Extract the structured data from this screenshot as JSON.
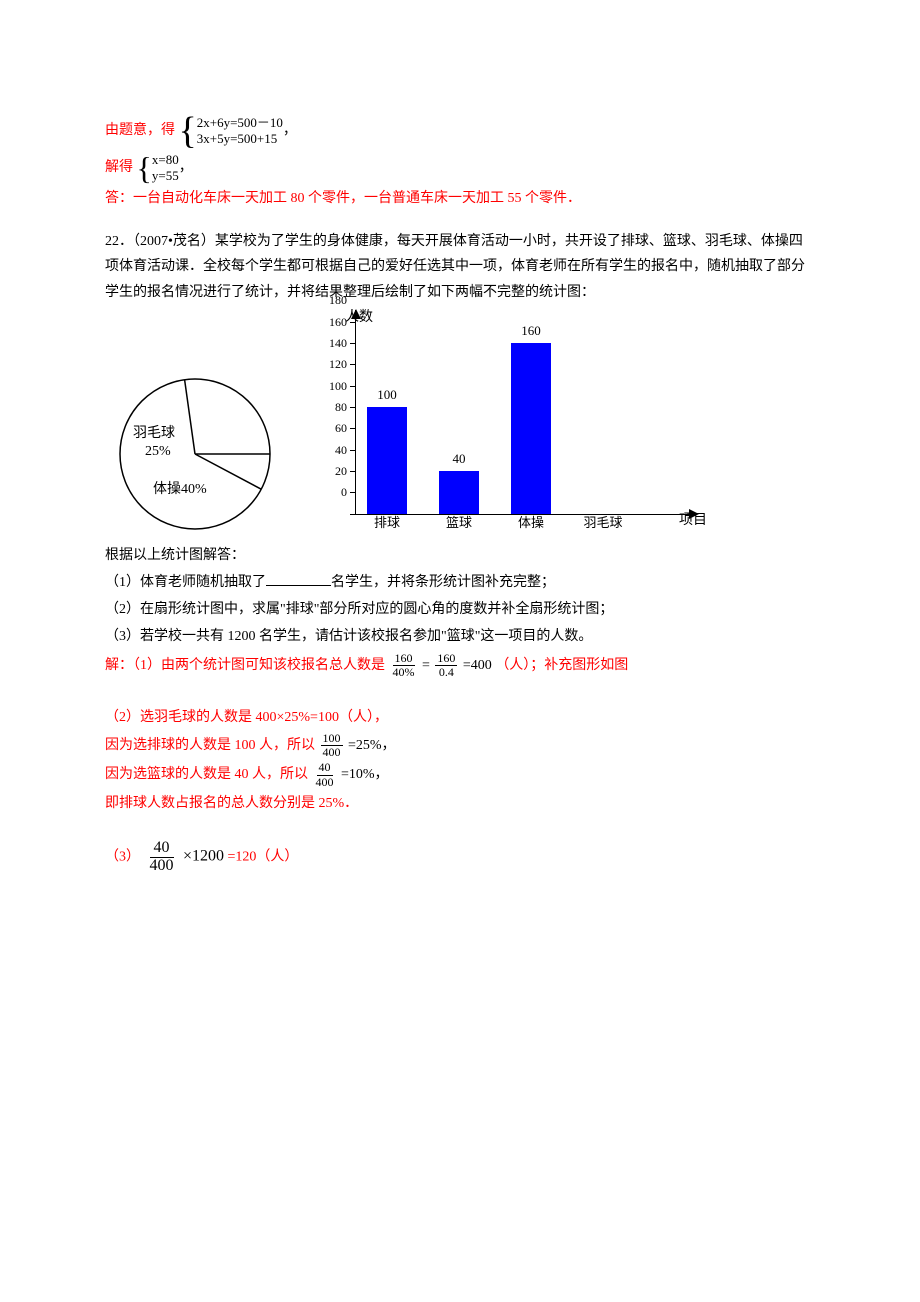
{
  "colors": {
    "answer": "#ff0000",
    "text": "#000000",
    "bar": "#0000ff",
    "axis": "#000000"
  },
  "q21": {
    "line_intro": "由题意，得",
    "eq1a": "2x+6y=500－10",
    "eq1b": "3x+5y=500+15",
    "line_solve": "解得",
    "sol1": "x=80",
    "sol2": "y=55",
    "answer_label": "答：",
    "answer_text": "一台自动化车床一天加工 80 个零件，一台普通车床一天加工 55 个零件．"
  },
  "q22": {
    "prefix": "22．（2007•茂名）",
    "body1": "某学校为了学生的身体健康，每天开展体育活动一小时，共开设了排球、篮球、羽毛球、体操四项体育活动课．全校每个学生都可根据自己的爱好任选其中一项，体育老师在所有学生的报名中，随机抽取了部分学生的报名情况进行了统计，并将结果整理后绘制了如下两幅不完整的统计图：",
    "pie": {
      "labels": {
        "badminton": "羽毛球",
        "badminton_pct": "25%",
        "gym": "体操40%"
      }
    },
    "bar": {
      "y_title": "人数",
      "x_title": "项目",
      "y_max": 180,
      "y_step": 20,
      "y_ticks": [
        0,
        20,
        40,
        60,
        80,
        100,
        120,
        140,
        160,
        180
      ],
      "categories": [
        "排球",
        "篮球",
        "体操",
        "羽毛球"
      ],
      "values": [
        100,
        40,
        160,
        0
      ],
      "value_labels": {
        "0": "100",
        "1": "40",
        "2": "160"
      }
    },
    "after_charts": "根据以上统计图解答：",
    "sub1a": "（1）体育老师随机抽取了",
    "sub1b": "名学生，并将条形统计图补充完整；",
    "sub2": "（2）在扇形统计图中，求属\"排球\"部分所对应的圆心角的度数并补全扇形统计图；",
    "sub3": "（3）若学校一共有 1200 名学生，请估计该校报名参加\"篮球\"这一项目的人数。",
    "ans_label": "解：",
    "ans1a": "（1）由两个统计图可知该校报名总人数是",
    "frac1_n": "160",
    "frac1_d": "40%",
    "eq_eq": "=",
    "frac2_n": "160",
    "frac2_d": "0.4",
    "ans1b": "=400",
    "ans1c": "（人）；补充图形如图",
    "ans2a": "（2）选羽毛球的人数是 400×25%=100（人），",
    "ans2b_pre": "因为选排球的人数是 100 人，所以",
    "frac3_n": "100",
    "frac3_d": "400",
    "ans2b_post": "=25%，",
    "ans2c_pre": "因为选篮球的人数是 40 人，所以",
    "frac4_n": "40",
    "frac4_d": "400",
    "ans2c_post": "=10%，",
    "ans2d": "即排球人数占报名的总人数分别是 25%．",
    "ans3_pre": "（3）",
    "frac5_n": "40",
    "frac5_d": "400",
    "ans3_mid": "×1200",
    "ans3_post": "=120（人）"
  }
}
